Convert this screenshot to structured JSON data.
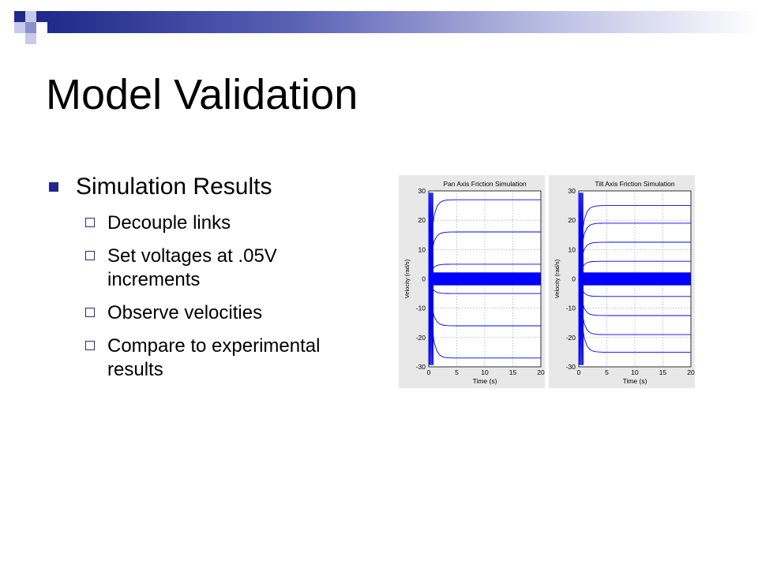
{
  "slide": {
    "title": "Model Validation",
    "accent_color": "#1f2a8a",
    "bullets": [
      {
        "text": "Simulation Results",
        "level": 1
      },
      {
        "text": "Decouple links",
        "level": 2
      },
      {
        "text": "Set voltages at .05V increments",
        "level": 2
      },
      {
        "text": "Observe velocities",
        "level": 2
      },
      {
        "text": "Compare to experimental results",
        "level": 2
      }
    ]
  },
  "chart_data": [
    {
      "type": "line",
      "title": "Pan Axis Friction Simulation",
      "xlabel": "Time (s)",
      "ylabel": "Velocity (rad/s)",
      "xlim": [
        0,
        20
      ],
      "ylim": [
        -30,
        30
      ],
      "xticks": [
        0,
        5,
        10,
        15,
        20
      ],
      "yticks": [
        -30,
        -20,
        -10,
        0,
        10,
        20,
        30
      ],
      "grid": true,
      "series_color": "#0000ff",
      "steady_state_levels": [
        27,
        16,
        5,
        -5,
        -16,
        -27
      ],
      "noise_band": [
        -2.2,
        2.2
      ]
    },
    {
      "type": "line",
      "title": "Tilt Axis Friction Simulation",
      "xlabel": "Time (s)",
      "ylabel": "Velocity (rad/s)",
      "xlim": [
        0,
        20
      ],
      "ylim": [
        -30,
        30
      ],
      "xticks": [
        0,
        5,
        10,
        15,
        20
      ],
      "yticks": [
        -30,
        -20,
        -10,
        0,
        10,
        20,
        30
      ],
      "grid": true,
      "series_color": "#0000ff",
      "steady_state_levels": [
        25,
        19,
        12.5,
        6,
        -6,
        -12.5,
        -19,
        -25
      ],
      "noise_band": [
        -2.2,
        2.2
      ]
    }
  ]
}
